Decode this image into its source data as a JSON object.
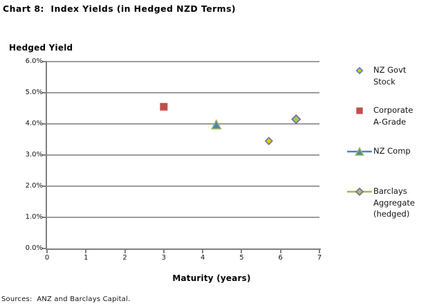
{
  "window": {
    "background": "#FFFFFF"
  },
  "source_note": "Sources:  ANZ and Barclays Capital.",
  "chart_data": {
    "type": "scatter",
    "title": "Chart 8:  Index Yields (in Hedged NZD Terms)",
    "xlabel": "Maturity (years)",
    "ylabel": "Hedged Yield",
    "xlim": [
      0,
      7
    ],
    "ylim": [
      0,
      6
    ],
    "x_ticks": {
      "values": [
        0,
        1,
        2,
        3,
        4,
        5,
        6,
        7
      ],
      "labels": [
        "0",
        "1",
        "2",
        "3",
        "4",
        "5",
        "6",
        "7"
      ]
    },
    "y_ticks": {
      "values": [
        0,
        1,
        2,
        3,
        4,
        5,
        6
      ],
      "labels": [
        "0.0%",
        "1.0%",
        "2.0%",
        "3.0%",
        "4.0%",
        "5.0%",
        "6.0%"
      ]
    },
    "grid": "horizontal",
    "legend_position": "right",
    "axis_color": "#808080",
    "grid_color": "#9C9C9C",
    "series": [
      {
        "name": "NZ Govt Stock",
        "legend_lines": [
          "NZ Govt",
          "Stock"
        ],
        "marker": "diamond",
        "fill": "#FFC000",
        "stroke": "#4F81BD",
        "size": 10,
        "line": false,
        "line_color": null,
        "points": [
          {
            "x": 5.7,
            "y": 3.45
          }
        ]
      },
      {
        "name": "Corporate A-Grade",
        "legend_lines": [
          "Corporate",
          "A-Grade"
        ],
        "marker": "square",
        "fill": "#C0504D",
        "stroke": "#C0504D",
        "size": 11,
        "line": false,
        "line_color": null,
        "points": [
          {
            "x": 3.0,
            "y": 4.55
          }
        ]
      },
      {
        "name": "NZ Comp",
        "legend_lines": [
          "NZ Comp"
        ],
        "marker": "triangle",
        "fill": "#4F81BD",
        "stroke": "#9BBB59",
        "size": 13,
        "line": true,
        "line_color": "#4F81BD",
        "points": [
          {
            "x": 4.35,
            "y": 3.98
          }
        ]
      },
      {
        "name": "Barclays Aggregate (hedged)",
        "legend_lines": [
          "Barclays",
          "Aggregate",
          "(hedged)"
        ],
        "marker": "diamond",
        "fill": "#92D050",
        "stroke": "#8064A2",
        "size": 12,
        "line": true,
        "line_color": "#9BBB59",
        "points": [
          {
            "x": 6.4,
            "y": 4.15
          }
        ]
      }
    ]
  }
}
